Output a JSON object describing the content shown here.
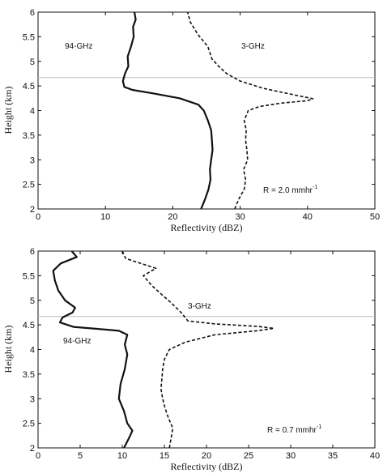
{
  "chart_data": [
    {
      "type": "line",
      "xlabel": "Reflectivity (dBZ)",
      "ylabel": "Height (km)",
      "xlim": [
        0,
        50
      ],
      "ylim": [
        2,
        6
      ],
      "xticks": [
        0,
        10,
        20,
        30,
        40,
        50
      ],
      "yticks": [
        2,
        2.5,
        3,
        3.5,
        4,
        4.5,
        5,
        5.5,
        6
      ],
      "reference_line_y": 4.67,
      "annotations": {
        "series_a": "94-GHz",
        "series_b": "3-GHz",
        "rain_rate_prefix": "R = 2.0 mmhr",
        "rain_rate_exp": "-1"
      },
      "series": [
        {
          "line_style": "solid",
          "points": [
            [
              24.2,
              2.0
            ],
            [
              24.8,
              2.2
            ],
            [
              25.3,
              2.4
            ],
            [
              25.6,
              2.6
            ],
            [
              25.5,
              2.8
            ],
            [
              25.7,
              3.0
            ],
            [
              25.9,
              3.2
            ],
            [
              25.8,
              3.4
            ],
            [
              25.7,
              3.6
            ],
            [
              25.2,
              3.8
            ],
            [
              24.6,
              4.0
            ],
            [
              23.8,
              4.12
            ],
            [
              21.0,
              4.25
            ],
            [
              17.0,
              4.35
            ],
            [
              14.0,
              4.42
            ],
            [
              12.8,
              4.48
            ],
            [
              12.6,
              4.6
            ],
            [
              12.9,
              4.75
            ],
            [
              13.4,
              4.9
            ],
            [
              13.3,
              5.1
            ],
            [
              13.8,
              5.3
            ],
            [
              14.2,
              5.5
            ],
            [
              14.1,
              5.7
            ],
            [
              14.5,
              5.85
            ],
            [
              14.3,
              6.0
            ]
          ]
        },
        {
          "line_style": "dashed",
          "points": [
            [
              29.2,
              2.0
            ],
            [
              29.8,
              2.2
            ],
            [
              30.6,
              2.4
            ],
            [
              30.8,
              2.6
            ],
            [
              30.5,
              2.8
            ],
            [
              31.1,
              3.0
            ],
            [
              31.0,
              3.2
            ],
            [
              30.8,
              3.4
            ],
            [
              30.9,
              3.6
            ],
            [
              30.6,
              3.8
            ],
            [
              31.2,
              4.0
            ],
            [
              32.8,
              4.08
            ],
            [
              36.0,
              4.15
            ],
            [
              40.0,
              4.2
            ],
            [
              40.8,
              4.24
            ],
            [
              38.0,
              4.32
            ],
            [
              33.5,
              4.45
            ],
            [
              30.0,
              4.6
            ],
            [
              28.0,
              4.75
            ],
            [
              26.8,
              4.9
            ],
            [
              25.8,
              5.05
            ],
            [
              25.2,
              5.3
            ],
            [
              23.7,
              5.55
            ],
            [
              22.6,
              5.8
            ],
            [
              22.2,
              6.0
            ]
          ]
        }
      ]
    },
    {
      "type": "line",
      "xlabel": "Reflectivity (dBZ)",
      "ylabel": "Height (km)",
      "xlim": [
        0,
        40
      ],
      "ylim": [
        2,
        6
      ],
      "xticks": [
        0,
        5,
        10,
        15,
        20,
        25,
        30,
        35,
        40
      ],
      "yticks": [
        2,
        2.5,
        3,
        3.5,
        4,
        4.5,
        5,
        5.5,
        6
      ],
      "reference_line_y": 4.67,
      "annotations": {
        "series_a": "94-GHz",
        "series_b": "3-GHz",
        "rain_rate_prefix": "R = 0.7 mmhr",
        "rain_rate_exp": "-1"
      },
      "series": [
        {
          "line_style": "solid",
          "points": [
            [
              10.2,
              2.0
            ],
            [
              10.8,
              2.2
            ],
            [
              11.2,
              2.35
            ],
            [
              10.6,
              2.5
            ],
            [
              10.2,
              2.75
            ],
            [
              9.6,
              3.0
            ],
            [
              9.8,
              3.3
            ],
            [
              10.3,
              3.6
            ],
            [
              10.6,
              3.9
            ],
            [
              10.3,
              4.1
            ],
            [
              10.6,
              4.3
            ],
            [
              9.6,
              4.38
            ],
            [
              7.0,
              4.42
            ],
            [
              4.2,
              4.46
            ],
            [
              2.6,
              4.55
            ],
            [
              2.9,
              4.65
            ],
            [
              4.1,
              4.75
            ],
            [
              4.4,
              4.85
            ],
            [
              3.2,
              5.0
            ],
            [
              2.4,
              5.2
            ],
            [
              2.0,
              5.4
            ],
            [
              1.8,
              5.6
            ],
            [
              2.7,
              5.75
            ],
            [
              4.6,
              5.88
            ],
            [
              4.0,
              6.0
            ]
          ]
        },
        {
          "line_style": "dashed",
          "points": [
            [
              15.6,
              2.0
            ],
            [
              15.8,
              2.2
            ],
            [
              16.0,
              2.4
            ],
            [
              15.5,
              2.6
            ],
            [
              15.1,
              2.8
            ],
            [
              14.8,
              3.0
            ],
            [
              14.6,
              3.2
            ],
            [
              14.7,
              3.4
            ],
            [
              14.8,
              3.6
            ],
            [
              15.0,
              3.8
            ],
            [
              15.6,
              4.0
            ],
            [
              17.5,
              4.15
            ],
            [
              21.0,
              4.3
            ],
            [
              26.0,
              4.38
            ],
            [
              28.0,
              4.43
            ],
            [
              26.0,
              4.47
            ],
            [
              21.0,
              4.52
            ],
            [
              17.8,
              4.58
            ],
            [
              17.0,
              4.75
            ],
            [
              15.8,
              4.95
            ],
            [
              14.8,
              5.1
            ],
            [
              13.5,
              5.3
            ],
            [
              12.5,
              5.5
            ],
            [
              14.0,
              5.65
            ],
            [
              10.4,
              5.85
            ],
            [
              10.0,
              6.0
            ]
          ]
        }
      ]
    }
  ]
}
